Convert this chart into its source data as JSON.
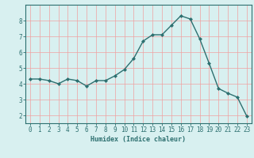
{
  "x": [
    0,
    1,
    2,
    3,
    4,
    5,
    6,
    7,
    8,
    9,
    10,
    11,
    12,
    13,
    14,
    15,
    16,
    17,
    18,
    19,
    20,
    21,
    22,
    23
  ],
  "y": [
    4.3,
    4.3,
    4.2,
    4.0,
    4.3,
    4.2,
    3.85,
    4.2,
    4.2,
    4.5,
    4.9,
    5.6,
    6.7,
    7.1,
    7.1,
    7.7,
    8.3,
    8.1,
    6.85,
    5.3,
    3.7,
    3.4,
    3.15,
    1.95
  ],
  "xlim": [
    -0.5,
    23.5
  ],
  "ylim": [
    1.5,
    9.0
  ],
  "yticks": [
    2,
    3,
    4,
    5,
    6,
    7,
    8
  ],
  "xticks": [
    0,
    1,
    2,
    3,
    4,
    5,
    6,
    7,
    8,
    9,
    10,
    11,
    12,
    13,
    14,
    15,
    16,
    17,
    18,
    19,
    20,
    21,
    22,
    23
  ],
  "xlabel": "Humidex (Indice chaleur)",
  "line_color": "#2d7070",
  "marker": "D",
  "marker_size": 2.0,
  "bg_color": "#d8f0f0",
  "grid_color": "#f0a0a0",
  "axis_color": "#2d7070",
  "tick_color": "#2d7070",
  "label_color": "#2d7070",
  "tick_fontsize": 5.5,
  "xlabel_fontsize": 6.0,
  "line_width": 1.0
}
